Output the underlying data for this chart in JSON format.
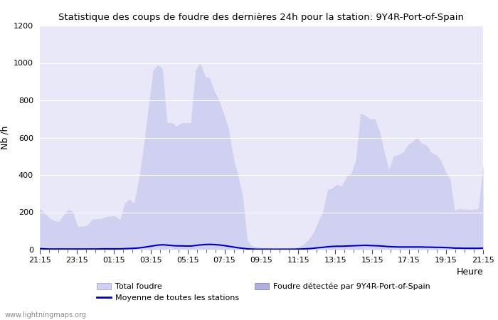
{
  "title": "Statistique des coups de foudre des dernières 24h pour la station: 9Y4R-Port-of-Spain",
  "xlabel": "Heure",
  "ylabel": "Nb /h",
  "xlim_labels": [
    "21:15",
    "23:15",
    "01:15",
    "03:15",
    "05:15",
    "07:15",
    "09:15",
    "11:15",
    "13:15",
    "15:15",
    "17:15",
    "19:15",
    "21:15"
  ],
  "ylim": [
    0,
    1200
  ],
  "yticks": [
    0,
    200,
    400,
    600,
    800,
    1000,
    1200
  ],
  "background_color": "#ffffff",
  "plot_bg_color": "#e8e8f8",
  "grid_color": "#ffffff",
  "fill_total_color": "#d0d0f0",
  "fill_station_color": "#b0b0e0",
  "line_moyenne_color": "#0000bb",
  "watermark": "www.lightningmaps.org",
  "legend_total": "Total foudre",
  "legend_moyenne": "Moyenne de toutes les stations",
  "legend_station": "Foudre détectée par 9Y4R-Port-of-Spain",
  "total_foudre": [
    220,
    195,
    170,
    155,
    150,
    185,
    215,
    205,
    125,
    125,
    130,
    160,
    165,
    165,
    175,
    180,
    180,
    160,
    250,
    270,
    250,
    380,
    550,
    760,
    960,
    990,
    970,
    680,
    680,
    660,
    680,
    680,
    680,
    960,
    1000,
    930,
    920,
    850,
    800,
    730,
    650,
    500,
    400,
    290,
    50,
    20,
    15,
    10,
    8,
    5,
    5,
    5,
    5,
    8,
    10,
    15,
    30,
    55,
    90,
    150,
    200,
    320,
    330,
    350,
    340,
    390,
    410,
    480,
    730,
    720,
    700,
    700,
    640,
    530,
    430,
    500,
    510,
    520,
    560,
    580,
    600,
    570,
    560,
    520,
    510,
    480,
    420,
    380,
    210,
    220,
    215,
    215,
    215,
    220,
    455
  ],
  "station_foudre": [
    0,
    0,
    0,
    0,
    0,
    0,
    0,
    0,
    0,
    0,
    0,
    0,
    0,
    0,
    0,
    0,
    0,
    0,
    0,
    0,
    0,
    0,
    0,
    0,
    0,
    0,
    0,
    0,
    0,
    0,
    0,
    0,
    0,
    0,
    0,
    0,
    0,
    0,
    0,
    0,
    0,
    0,
    0,
    0,
    0,
    0,
    0,
    0,
    0,
    0,
    0,
    0,
    0,
    0,
    0,
    0,
    0,
    0,
    0,
    0,
    0,
    0,
    0,
    0,
    0,
    0,
    0,
    0,
    0,
    0,
    0,
    0,
    0,
    0,
    0,
    0,
    0,
    0,
    0,
    0,
    0,
    0,
    0,
    0,
    0,
    0,
    0,
    0,
    0,
    0,
    0,
    0,
    0,
    0,
    0
  ],
  "moyenne": [
    5,
    4,
    3,
    3,
    3,
    3,
    3,
    3,
    3,
    3,
    3,
    3,
    3,
    4,
    4,
    4,
    4,
    4,
    5,
    6,
    7,
    9,
    12,
    16,
    20,
    24,
    26,
    24,
    22,
    20,
    20,
    19,
    19,
    22,
    25,
    27,
    28,
    27,
    25,
    22,
    18,
    14,
    10,
    7,
    4,
    3,
    2,
    2,
    2,
    2,
    2,
    2,
    2,
    2,
    2,
    3,
    4,
    5,
    7,
    10,
    12,
    15,
    17,
    18,
    18,
    19,
    20,
    21,
    22,
    23,
    22,
    21,
    20,
    18,
    16,
    15,
    14,
    14,
    14,
    14,
    14,
    14,
    13,
    13,
    12,
    12,
    11,
    10,
    8,
    8,
    7,
    7,
    7,
    7,
    8
  ]
}
